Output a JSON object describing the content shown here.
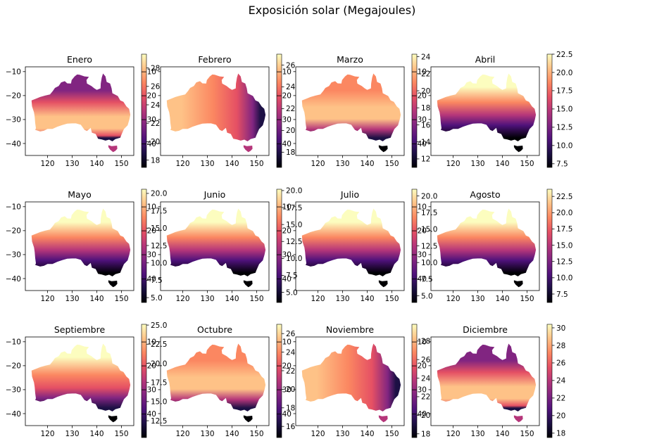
{
  "suptitle": "Exposición solar (Megajoules)",
  "colormap": {
    "name": "magma",
    "stops": [
      "#000004",
      "#1c1044",
      "#4f127b",
      "#812581",
      "#b5367a",
      "#e55064",
      "#fb8761",
      "#fec287",
      "#fcfdbf"
    ]
  },
  "chart_data": [
    {
      "type": "heatmap",
      "title": "Enero",
      "xlim": [
        111,
        155
      ],
      "ylim": [
        -45,
        -8
      ],
      "xticks": [
        120,
        130,
        140,
        150
      ],
      "yticks": [
        -10,
        -20,
        -30,
        -40
      ],
      "xticklabels": [
        "120",
        "130",
        "140",
        "150"
      ],
      "yticklabels": [
        "−10",
        "−20",
        "−30",
        "−40"
      ],
      "color_range": [
        17.2,
        29.5
      ],
      "colorbar_ticks": [
        18,
        20,
        22,
        24,
        26,
        28
      ],
      "colorbar_ticklabels": [
        "18",
        "20",
        "22",
        "24",
        "26",
        "28"
      ],
      "pattern": "summer_south_peak"
    },
    {
      "type": "heatmap",
      "title": "Febrero",
      "xlim": [
        111,
        155
      ],
      "ylim": [
        -45,
        -8
      ],
      "xticks": [
        120,
        130,
        140,
        150
      ],
      "yticks": [
        -10,
        -20,
        -30,
        -40
      ],
      "xticklabels": [
        "120",
        "130",
        "140",
        "150"
      ],
      "yticklabels": [
        "−10",
        "−20",
        "−30",
        "−40"
      ],
      "color_range": [
        16.6,
        27.0
      ],
      "colorbar_ticks": [
        18,
        20,
        22,
        24,
        26
      ],
      "colorbar_ticklabels": [
        "18",
        "20",
        "22",
        "24",
        "26"
      ],
      "pattern": "summer_west_peak"
    },
    {
      "type": "heatmap",
      "title": "Marzo",
      "xlim": [
        111,
        155
      ],
      "ylim": [
        -45,
        -8
      ],
      "xticks": [
        120,
        130,
        140,
        150
      ],
      "yticks": [
        -10,
        -20,
        -30,
        -40
      ],
      "xticklabels": [
        "120",
        "130",
        "140",
        "150"
      ],
      "yticklabels": [
        "−10",
        "−20",
        "−30",
        "−40"
      ],
      "color_range": [
        11.0,
        24.3
      ],
      "colorbar_ticks": [
        12,
        14,
        16,
        18,
        20,
        22,
        24
      ],
      "colorbar_ticklabels": [
        "12",
        "14",
        "16",
        "18",
        "20",
        "22",
        "24"
      ],
      "pattern": "central_peak"
    },
    {
      "type": "heatmap",
      "title": "Abril",
      "xlim": [
        111,
        155
      ],
      "ylim": [
        -45,
        -8
      ],
      "xticks": [
        120,
        130,
        140,
        150
      ],
      "yticks": [
        -10,
        -20,
        -30,
        -40
      ],
      "xticklabels": [
        "120",
        "130",
        "140",
        "150"
      ],
      "yticklabels": [
        "−10",
        "−20",
        "−30",
        "−40"
      ],
      "color_range": [
        7.0,
        22.5
      ],
      "colorbar_ticks": [
        7.5,
        10.0,
        12.5,
        15.0,
        17.5,
        20.0,
        22.5
      ],
      "colorbar_ticklabels": [
        "7.5",
        "10.0",
        "12.5",
        "15.0",
        "17.5",
        "20.0",
        "22.5"
      ],
      "pattern": "north_south"
    },
    {
      "type": "heatmap",
      "title": "Mayo",
      "xlim": [
        111,
        155
      ],
      "ylim": [
        -45,
        -8
      ],
      "xticks": [
        120,
        130,
        140,
        150
      ],
      "yticks": [
        -10,
        -20,
        -30,
        -40
      ],
      "xticklabels": [
        "120",
        "130",
        "140",
        "150"
      ],
      "yticklabels": [
        "−10",
        "−20",
        "−30",
        "−40"
      ],
      "color_range": [
        4.3,
        20.6
      ],
      "colorbar_ticks": [
        5.0,
        7.5,
        10.0,
        12.5,
        15.0,
        17.5,
        20.0
      ],
      "colorbar_ticklabels": [
        "5.0",
        "7.5",
        "10.0",
        "12.5",
        "15.0",
        "17.5",
        "20.0"
      ],
      "pattern": "north_south"
    },
    {
      "type": "heatmap",
      "title": "Junio",
      "xlim": [
        111,
        155
      ],
      "ylim": [
        -45,
        -8
      ],
      "xticks": [
        120,
        130,
        140,
        150
      ],
      "yticks": [
        -10,
        -20,
        -30,
        -40
      ],
      "xticklabels": [
        "120",
        "130",
        "140",
        "150"
      ],
      "yticklabels": [
        "−10",
        "−20",
        "−30",
        "−40"
      ],
      "color_range": [
        3.5,
        20.2
      ],
      "colorbar_ticks": [
        5.0,
        7.5,
        10.0,
        12.5,
        15.0,
        17.5,
        20.0
      ],
      "colorbar_ticklabels": [
        "5.0",
        "7.5",
        "10.0",
        "12.5",
        "15.0",
        "17.5",
        "20.0"
      ],
      "pattern": "north_south"
    },
    {
      "type": "heatmap",
      "title": "Julio",
      "xlim": [
        111,
        155
      ],
      "ylim": [
        -45,
        -8
      ],
      "xticks": [
        120,
        130,
        140,
        150
      ],
      "yticks": [
        -10,
        -20,
        -30,
        -40
      ],
      "xticklabels": [
        "120",
        "130",
        "140",
        "150"
      ],
      "yticklabels": [
        "−10",
        "−20",
        "−30",
        "−40"
      ],
      "color_range": [
        4.0,
        21.0
      ],
      "colorbar_ticks": [
        5.0,
        7.5,
        10.0,
        12.5,
        15.0,
        17.5,
        20.0
      ],
      "colorbar_ticklabels": [
        "5.0",
        "7.5",
        "10.0",
        "12.5",
        "15.0",
        "17.5",
        "20.0"
      ],
      "pattern": "north_south"
    },
    {
      "type": "heatmap",
      "title": "Agosto",
      "xlim": [
        111,
        155
      ],
      "ylim": [
        -45,
        -8
      ],
      "xticks": [
        120,
        130,
        140,
        150
      ],
      "yticks": [
        -10,
        -20,
        -30,
        -40
      ],
      "xticklabels": [
        "120",
        "130",
        "140",
        "150"
      ],
      "yticklabels": [
        "−10",
        "−20",
        "−30",
        "−40"
      ],
      "color_range": [
        6.2,
        23.6
      ],
      "colorbar_ticks": [
        7.5,
        10.0,
        12.5,
        15.0,
        17.5,
        20.0,
        22.5
      ],
      "colorbar_ticklabels": [
        "7.5",
        "10.0",
        "12.5",
        "15.0",
        "17.5",
        "20.0",
        "22.5"
      ],
      "pattern": "north_south"
    },
    {
      "type": "heatmap",
      "title": "Septiembre",
      "xlim": [
        111,
        155
      ],
      "ylim": [
        -45,
        -8
      ],
      "xticks": [
        120,
        130,
        140,
        150
      ],
      "yticks": [
        -10,
        -20,
        -30,
        -40
      ],
      "xticklabels": [
        "120",
        "130",
        "140",
        "150"
      ],
      "yticklabels": [
        "−10",
        "−20",
        "−30",
        "−40"
      ],
      "color_range": [
        10.3,
        25.1
      ],
      "colorbar_ticks": [
        12.5,
        15.0,
        17.5,
        20.0,
        22.5,
        25.0
      ],
      "colorbar_ticklabels": [
        "12.5",
        "15.0",
        "17.5",
        "20.0",
        "22.5",
        "25.0"
      ],
      "pattern": "north_south_mild"
    },
    {
      "type": "heatmap",
      "title": "Octubre",
      "xlim": [
        111,
        155
      ],
      "ylim": [
        -45,
        -8
      ],
      "xticks": [
        120,
        130,
        140,
        150
      ],
      "yticks": [
        -10,
        -20,
        -30,
        -40
      ],
      "xticklabels": [
        "120",
        "130",
        "140",
        "150"
      ],
      "yticklabels": [
        "−10",
        "−20",
        "−30",
        "−40"
      ],
      "color_range": [
        14.8,
        27.0
      ],
      "colorbar_ticks": [
        16,
        18,
        20,
        22,
        24,
        26
      ],
      "colorbar_ticklabels": [
        "16",
        "18",
        "20",
        "22",
        "24",
        "26"
      ],
      "pattern": "central_peak"
    },
    {
      "type": "heatmap",
      "title": "Noviembre",
      "xlim": [
        111,
        155
      ],
      "ylim": [
        -45,
        -8
      ],
      "xticks": [
        120,
        130,
        140,
        150
      ],
      "yticks": [
        -10,
        -20,
        -30,
        -40
      ],
      "xticklabels": [
        "120",
        "130",
        "140",
        "150"
      ],
      "yticklabels": [
        "−10",
        "−20",
        "−30",
        "−40"
      ],
      "color_range": [
        17.6,
        29.8
      ],
      "colorbar_ticks": [
        18,
        20,
        22,
        24,
        26,
        28
      ],
      "colorbar_ticklabels": [
        "18",
        "20",
        "22",
        "24",
        "26",
        "28"
      ],
      "pattern": "summer_west_peak"
    },
    {
      "type": "heatmap",
      "title": "Diciembre",
      "xlim": [
        111,
        155
      ],
      "ylim": [
        -45,
        -8
      ],
      "xticks": [
        120,
        130,
        140,
        150
      ],
      "yticks": [
        -10,
        -20,
        -30,
        -40
      ],
      "xticklabels": [
        "120",
        "130",
        "140",
        "150"
      ],
      "yticklabels": [
        "−10",
        "−20",
        "−30",
        "−40"
      ],
      "color_range": [
        17.5,
        30.4
      ],
      "colorbar_ticks": [
        18,
        20,
        22,
        24,
        26,
        28,
        30
      ],
      "colorbar_ticklabels": [
        "18",
        "20",
        "22",
        "24",
        "26",
        "28",
        "30"
      ],
      "pattern": "summer_south_peak"
    }
  ]
}
